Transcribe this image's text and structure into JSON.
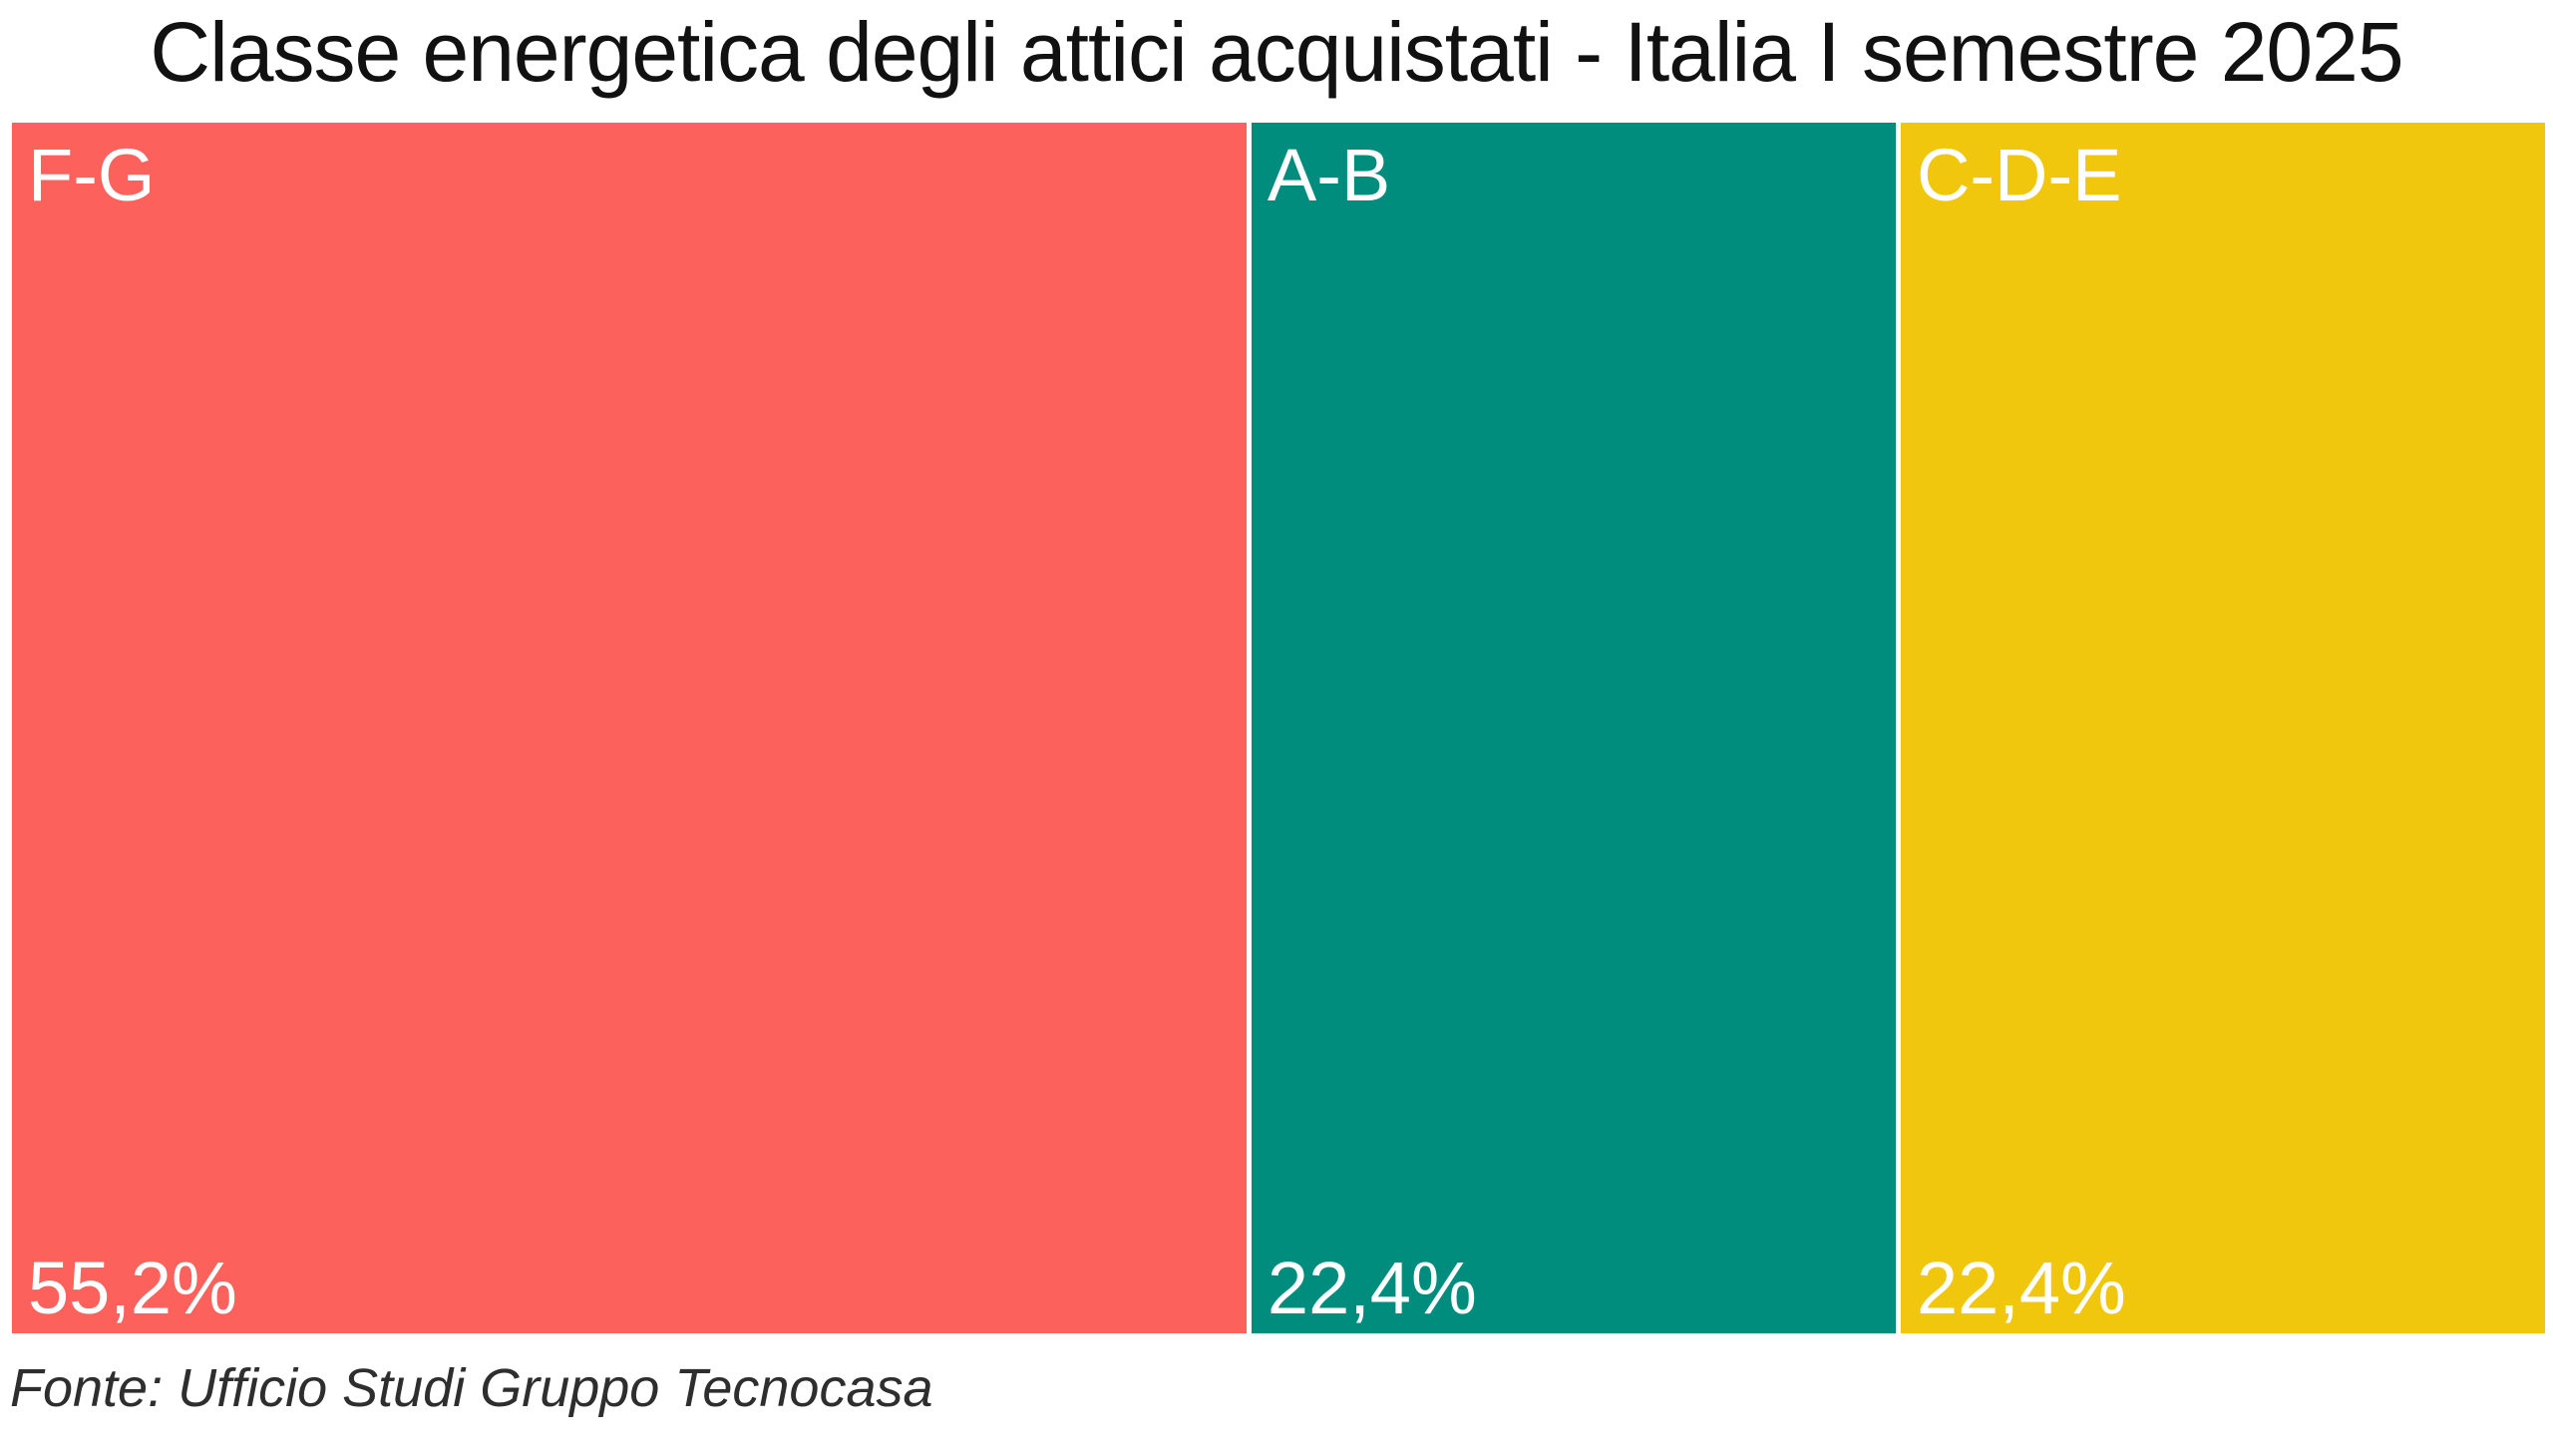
{
  "page": {
    "background_color": "#ffffff",
    "title_color": "#111111",
    "source_color": "#2e2e2e"
  },
  "chart_data": {
    "type": "treemap",
    "title": "Classe energetica degli attici acquistati - Italia I semestre 2025",
    "source": "Fonte: Ufficio Studi Gruppo Tecnocasa",
    "categories": [
      "F-G",
      "A-B",
      "C-D-E"
    ],
    "values": [
      55.2,
      22.4,
      22.4
    ],
    "value_labels": [
      "55,2%",
      "22,4%",
      "22,4%"
    ],
    "colors": [
      "#FC615C",
      "#008D7E",
      "#F0C70D"
    ],
    "label_text_color": "#FFFFFF",
    "layout": "single row of proportional tiles; category label top-left, value bottom-left; white gaps between tiles; legend off; axes off",
    "segments": [
      {
        "label": "F-G",
        "value": 55.2,
        "value_label": "55,2%",
        "color": "#FC615C"
      },
      {
        "label": "A-B",
        "value": 22.4,
        "value_label": "22,4%",
        "color": "#008D7E"
      },
      {
        "label": "C-D-E",
        "value": 22.4,
        "value_label": "22,4%",
        "color": "#F0C70D"
      }
    ]
  }
}
